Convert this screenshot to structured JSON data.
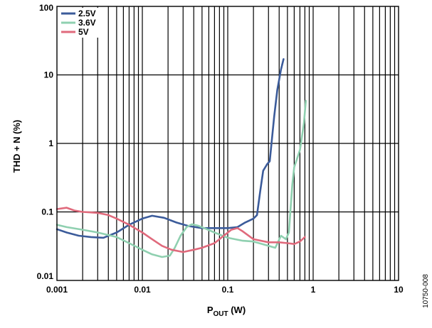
{
  "chart_data": {
    "type": "line",
    "xlabel_main": "P",
    "xlabel_sub": "OUT",
    "xlabel_unit": " (W)",
    "ylabel": "THD + N (%)",
    "xscale": "log",
    "yscale": "log",
    "xlim": [
      0.001,
      10
    ],
    "ylim": [
      0.01,
      100
    ],
    "grid": true,
    "legend_position": "top-left",
    "x_ticks": [
      {
        "value": 0.001,
        "label": "0.001"
      },
      {
        "value": 0.01,
        "label": "0.01"
      },
      {
        "value": 0.1,
        "label": "0.1"
      },
      {
        "value": 1,
        "label": "1"
      },
      {
        "value": 10,
        "label": "10"
      }
    ],
    "y_ticks": [
      {
        "value": 0.01,
        "label": "0.01"
      },
      {
        "value": 0.1,
        "label": "0.1"
      },
      {
        "value": 1,
        "label": "1"
      },
      {
        "value": 10,
        "label": "10"
      },
      {
        "value": 100,
        "label": "100"
      }
    ],
    "series": [
      {
        "name": "2.5V",
        "color": "#3b5b9a",
        "points": [
          [
            0.001,
            0.056
          ],
          [
            0.0013,
            0.05
          ],
          [
            0.0018,
            0.045
          ],
          [
            0.0025,
            0.043
          ],
          [
            0.0035,
            0.042
          ],
          [
            0.005,
            0.05
          ],
          [
            0.007,
            0.065
          ],
          [
            0.01,
            0.08
          ],
          [
            0.013,
            0.088
          ],
          [
            0.018,
            0.082
          ],
          [
            0.025,
            0.07
          ],
          [
            0.035,
            0.062
          ],
          [
            0.05,
            0.058
          ],
          [
            0.07,
            0.058
          ],
          [
            0.1,
            0.058
          ],
          [
            0.13,
            0.06
          ],
          [
            0.16,
            0.07
          ],
          [
            0.2,
            0.08
          ],
          [
            0.22,
            0.09
          ],
          [
            0.24,
            0.2
          ],
          [
            0.26,
            0.4
          ],
          [
            0.29,
            0.5
          ],
          [
            0.31,
            0.55
          ],
          [
            0.35,
            2.5
          ],
          [
            0.38,
            6
          ],
          [
            0.42,
            12
          ],
          [
            0.45,
            17
          ]
        ]
      },
      {
        "name": "3.6V",
        "color": "#8fd0b0",
        "points": [
          [
            0.001,
            0.065
          ],
          [
            0.0013,
            0.06
          ],
          [
            0.002,
            0.055
          ],
          [
            0.003,
            0.05
          ],
          [
            0.005,
            0.043
          ],
          [
            0.007,
            0.035
          ],
          [
            0.01,
            0.028
          ],
          [
            0.013,
            0.024
          ],
          [
            0.017,
            0.022
          ],
          [
            0.021,
            0.023
          ],
          [
            0.024,
            0.03
          ],
          [
            0.028,
            0.045
          ],
          [
            0.033,
            0.06
          ],
          [
            0.038,
            0.066
          ],
          [
            0.045,
            0.063
          ],
          [
            0.055,
            0.057
          ],
          [
            0.07,
            0.05
          ],
          [
            0.1,
            0.042
          ],
          [
            0.15,
            0.038
          ],
          [
            0.2,
            0.037
          ],
          [
            0.3,
            0.032
          ],
          [
            0.36,
            0.03
          ],
          [
            0.42,
            0.045
          ],
          [
            0.48,
            0.04
          ],
          [
            0.52,
            0.05
          ],
          [
            0.57,
            0.25
          ],
          [
            0.6,
            0.45
          ],
          [
            0.7,
            0.8
          ],
          [
            0.78,
            2
          ],
          [
            0.82,
            4.2
          ]
        ]
      },
      {
        "name": "5V",
        "color": "#e06a7c",
        "points": [
          [
            0.001,
            0.11
          ],
          [
            0.0013,
            0.115
          ],
          [
            0.0016,
            0.105
          ],
          [
            0.002,
            0.1
          ],
          [
            0.003,
            0.097
          ],
          [
            0.004,
            0.09
          ],
          [
            0.005,
            0.08
          ],
          [
            0.007,
            0.065
          ],
          [
            0.01,
            0.05
          ],
          [
            0.013,
            0.04
          ],
          [
            0.017,
            0.032
          ],
          [
            0.022,
            0.028
          ],
          [
            0.03,
            0.026
          ],
          [
            0.04,
            0.028
          ],
          [
            0.05,
            0.03
          ],
          [
            0.07,
            0.035
          ],
          [
            0.09,
            0.045
          ],
          [
            0.11,
            0.055
          ],
          [
            0.13,
            0.058
          ],
          [
            0.15,
            0.052
          ],
          [
            0.2,
            0.04
          ],
          [
            0.3,
            0.036
          ],
          [
            0.4,
            0.036
          ],
          [
            0.5,
            0.035
          ],
          [
            0.6,
            0.034
          ],
          [
            0.7,
            0.037
          ],
          [
            0.8,
            0.043
          ]
        ]
      }
    ]
  },
  "figure_id": "10750-008"
}
